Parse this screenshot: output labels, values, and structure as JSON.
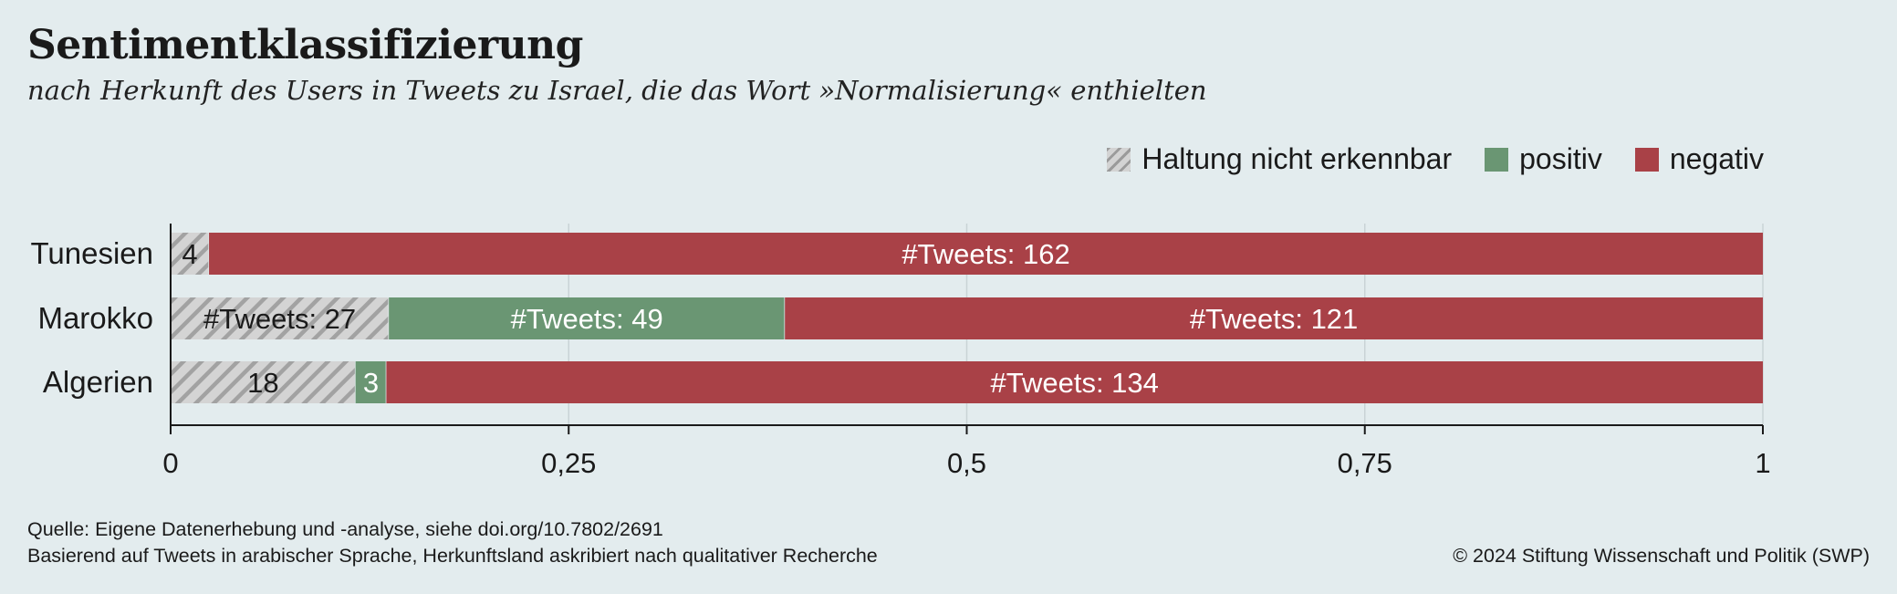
{
  "header": {
    "title": "Sentimentklassifizierung",
    "subtitle": "nach Herkunft des Users in Tweets zu Israel, die das Wort »Normalisierung« enthielten"
  },
  "footer": {
    "source": "Quelle: Eigene Datenerhebung und -analyse, siehe doi.org/10.7802/2691",
    "note": "Basierend auf Tweets in arabischer Sprache, Herkunftsland askribiert nach qualitativer Recherche",
    "copyright": "© 2024 Stiftung Wissenschaft und Politik (SWP)"
  },
  "chart_data": {
    "type": "bar",
    "orientation": "horizontal",
    "stacked": true,
    "normalized": true,
    "categories": [
      "Tunesien",
      "Marokko",
      "Algerien"
    ],
    "series": [
      {
        "name": "Haltung nicht erkennbar",
        "color": "#cfcfcf",
        "pattern": "hatch",
        "counts": [
          4,
          27,
          18
        ],
        "labels": [
          "4",
          "#Tweets: 27",
          "18"
        ]
      },
      {
        "name": "positiv",
        "color": "#6a9673",
        "counts": [
          0,
          49,
          3
        ],
        "labels": [
          "",
          "#Tweets: 49",
          "3"
        ]
      },
      {
        "name": "negativ",
        "color": "#a94147",
        "counts": [
          162,
          121,
          134
        ],
        "labels": [
          "#Tweets: 162",
          "#Tweets: 121",
          "#Tweets: 134"
        ]
      }
    ],
    "xlim": [
      0,
      1
    ],
    "xticks": [
      0,
      0.25,
      0.5,
      0.75,
      1
    ],
    "xtick_labels": [
      "0",
      "0,25",
      "0,5",
      "0,75",
      "1"
    ],
    "grid": true,
    "legend_position": "top-right"
  }
}
